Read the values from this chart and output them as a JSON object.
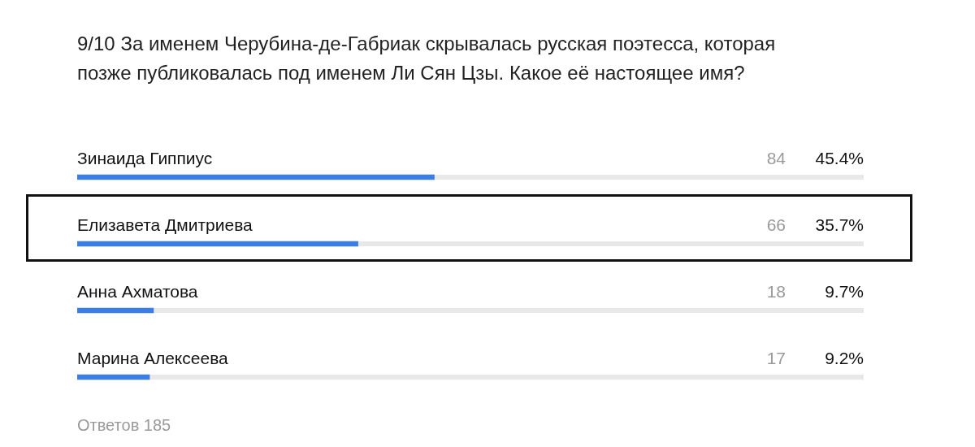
{
  "chart_data": {
    "type": "bar",
    "orientation": "horizontal",
    "title": "9/10 За именем Черубина-де-Габриак скрывалась русская поэтесса, которая позже публиковалась под именем Ли Сян Цзы. Какое её настоящее имя?",
    "categories": [
      "Зинаида Гиппиус",
      "Елизавета Дмитриева",
      "Анна Ахматова",
      "Марина Алексеева"
    ],
    "values": [
      45.4,
      35.7,
      9.7,
      9.2
    ],
    "color": "#3b7de8",
    "value_labels": [
      "45.4%",
      "35.7%",
      "9.7%",
      "9.2%"
    ],
    "annotations": [
      "84",
      "66",
      "18",
      "17",
      "Ответов 185"
    ],
    "legend": false
  }
}
